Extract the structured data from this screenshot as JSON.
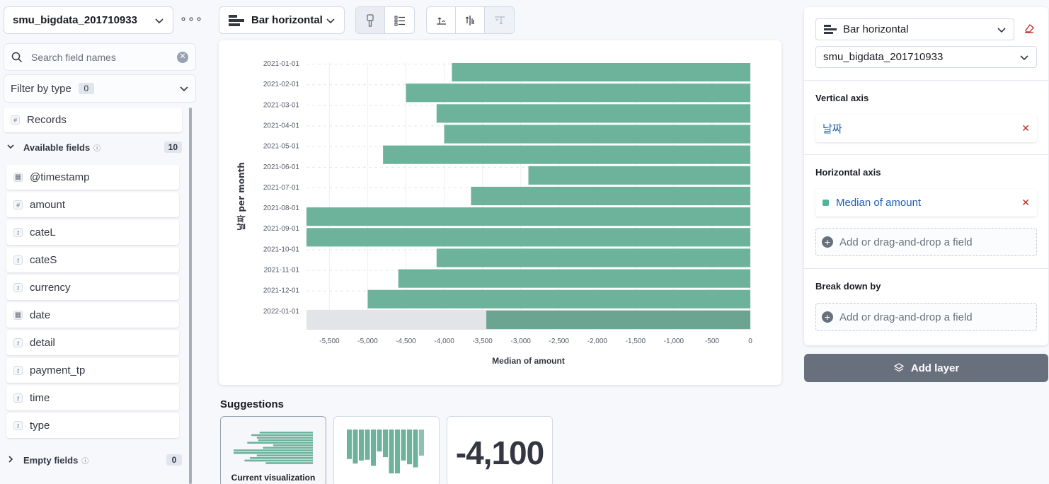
{
  "sidebar": {
    "index_pattern": "smu_bigdata_201710933",
    "search_placeholder": "Search field names",
    "filter_label": "Filter by type",
    "filter_count": "0",
    "records_label": "Records",
    "available_label": "Available fields",
    "available_count": "10",
    "empty_label": "Empty fields",
    "empty_count": "0",
    "fields": [
      {
        "name": "@timestamp",
        "type": "date"
      },
      {
        "name": "amount",
        "type": "number"
      },
      {
        "name": "cateL",
        "type": "string"
      },
      {
        "name": "cateS",
        "type": "string"
      },
      {
        "name": "currency",
        "type": "string"
      },
      {
        "name": "date",
        "type": "date"
      },
      {
        "name": "detail",
        "type": "string"
      },
      {
        "name": "payment_tp",
        "type": "string"
      },
      {
        "name": "time",
        "type": "string"
      },
      {
        "name": "type",
        "type": "string"
      }
    ]
  },
  "toolbar": {
    "chart_type": "Bar horizontal"
  },
  "chart_data": {
    "type": "bar",
    "orientation": "horizontal",
    "categories": [
      "2021-01-01",
      "2021-02-01",
      "2021-03-01",
      "2021-04-01",
      "2021-05-01",
      "2021-06-01",
      "2021-07-01",
      "2021-08-01",
      "2021-09-01",
      "2021-10-01",
      "2021-11-01",
      "2021-12-01",
      "2022-01-01"
    ],
    "values": [
      -3900,
      -4500,
      -4100,
      -4000,
      -4800,
      -2900,
      -3650,
      -5800,
      -5800,
      -4100,
      -4600,
      -5000,
      -3450
    ],
    "ylabel": "날짜 per month",
    "xlabel": "Median of amount",
    "xlim": [
      -5800,
      0
    ],
    "xticks": [
      -5500,
      -5000,
      -4500,
      -4000,
      -3500,
      -3000,
      -2500,
      -2000,
      -1500,
      -1000,
      -500,
      0
    ],
    "xtick_labels": [
      "-5,500",
      "-5,000",
      "-4,500",
      "-4,000",
      "-3,500",
      "-3,000",
      "-2,500",
      "-2,000",
      "-1,500",
      "-1,000",
      "-500",
      "0"
    ],
    "grid": true,
    "color": "#6db39b",
    "partial_color": "#6ba591",
    "partial_bg": "#e2e4e8"
  },
  "suggestions": {
    "title": "Suggestions",
    "current_label": "Current visualization",
    "metric_value": "-4,100"
  },
  "config": {
    "chart_type": "Bar horizontal",
    "index_pattern": "smu_bigdata_201710933",
    "vertical_axis_label": "Vertical axis",
    "vertical_field": "날짜",
    "horizontal_axis_label": "Horizontal axis",
    "horizontal_field": "Median of amount",
    "add_field_label": "Add or drag-and-drop a field",
    "breakdown_label": "Break down by",
    "add_layer_label": "Add layer"
  }
}
